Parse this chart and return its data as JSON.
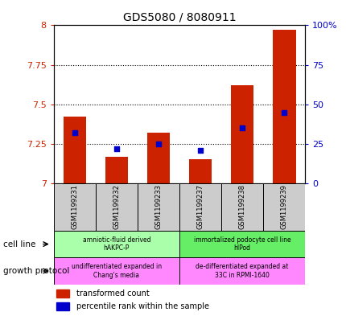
{
  "title": "GDS5080 / 8080911",
  "samples": [
    "GSM1199231",
    "GSM1199232",
    "GSM1199233",
    "GSM1199237",
    "GSM1199238",
    "GSM1199239"
  ],
  "red_values": [
    7.42,
    7.17,
    7.32,
    7.15,
    7.62,
    7.97
  ],
  "blue_percentile": [
    32,
    22,
    25,
    21,
    35,
    45
  ],
  "ylim_left": [
    7.0,
    8.0
  ],
  "ylim_right": [
    0,
    100
  ],
  "yticks_left": [
    7.0,
    7.25,
    7.5,
    7.75,
    8.0
  ],
  "yticks_right": [
    0,
    25,
    50,
    75,
    100
  ],
  "ytick_labels_left": [
    "7",
    "7.25",
    "7.5",
    "7.75",
    "8"
  ],
  "ytick_labels_right": [
    "0",
    "25",
    "50",
    "75",
    "100%"
  ],
  "left_axis_color": "#cc2200",
  "right_axis_color": "#0000cc",
  "bar_color": "#cc2200",
  "dot_color": "#0000cc",
  "sample_box_color": "#cccccc",
  "cell_line_groups": [
    {
      "label": "amniotic-fluid derived\nhAKPC-P",
      "start": 0,
      "end": 3,
      "color": "#aaffaa"
    },
    {
      "label": "immortalized podocyte cell line\nhIPod",
      "start": 3,
      "end": 6,
      "color": "#66ee66"
    }
  ],
  "growth_protocol_groups": [
    {
      "label": "undifferentiated expanded in\nChang's media",
      "start": 0,
      "end": 3,
      "color": "#ff88ff"
    },
    {
      "label": "de-differentiated expanded at\n33C in RPMI-1640",
      "start": 3,
      "end": 6,
      "color": "#ff88ff"
    }
  ],
  "legend_items": [
    {
      "color": "#cc2200",
      "label": "transformed count"
    },
    {
      "color": "#0000cc",
      "label": "percentile rank within the sample"
    }
  ],
  "cell_line_label": "cell line",
  "growth_protocol_label": "growth protocol",
  "grid_yticks": [
    7.25,
    7.5,
    7.75
  ]
}
